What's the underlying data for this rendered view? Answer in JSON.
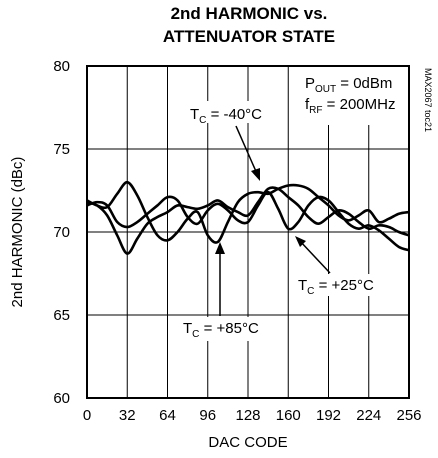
{
  "chart_data": {
    "type": "line",
    "title_line1": "2nd HARMONIC vs.",
    "title_line2": "ATTENUATOR STATE",
    "xlabel": "DAC CODE",
    "ylabel": "2nd HARMONIC (dBc)",
    "xlim": [
      0,
      256
    ],
    "ylim": [
      60,
      80
    ],
    "xticks": [
      "0",
      "32",
      "64",
      "96",
      "128",
      "160",
      "192",
      "224",
      "256"
    ],
    "yticks": [
      "60",
      "65",
      "70",
      "75",
      "80"
    ],
    "grid": true,
    "conditions": {
      "pout_main": "P",
      "pout_sub": "OUT",
      "pout_rest": " = 0dBm",
      "frf_main": "f",
      "frf_sub": "RF",
      "frf_rest": " = 200MHz"
    },
    "side_id": "MAX2067 toc21",
    "series": [
      {
        "name": "T",
        "sub": "C",
        "rest": " = -40°C",
        "x": [
          0,
          8,
          16,
          24,
          32,
          40,
          48,
          56,
          64,
          72,
          80,
          88,
          96,
          104,
          112,
          120,
          128,
          136,
          144,
          152,
          160,
          168,
          176,
          184,
          192,
          200,
          208,
          216,
          224,
          232,
          240,
          248,
          256
        ],
        "values": [
          71.8,
          71.6,
          71.0,
          69.8,
          68.7,
          69.6,
          70.5,
          70.9,
          71.2,
          71.6,
          71.5,
          71.4,
          71.6,
          71.9,
          71.5,
          71.2,
          71.0,
          71.8,
          72.6,
          72.6,
          72.1,
          71.6,
          70.9,
          70.5,
          70.9,
          71.3,
          71.1,
          70.6,
          70.2,
          70.4,
          70.3,
          70.0,
          69.8
        ]
      },
      {
        "name": "T",
        "sub": "C",
        "rest": " = +25°C",
        "x": [
          0,
          8,
          16,
          24,
          32,
          40,
          48,
          56,
          64,
          72,
          80,
          88,
          96,
          104,
          112,
          120,
          128,
          136,
          144,
          152,
          160,
          168,
          176,
          184,
          192,
          200,
          208,
          216,
          224,
          232,
          240,
          248,
          256
        ],
        "values": [
          71.6,
          71.8,
          71.6,
          70.6,
          70.3,
          70.6,
          71.1,
          71.6,
          72.1,
          71.9,
          70.9,
          70.5,
          71.3,
          71.7,
          71.3,
          70.7,
          70.6,
          71.6,
          72.4,
          71.4,
          70.2,
          70.6,
          71.6,
          72.1,
          71.9,
          71.2,
          70.5,
          70.2,
          70.4,
          70.1,
          69.6,
          69.1,
          68.9
        ]
      },
      {
        "name": "T",
        "sub": "C",
        "rest": " = +85°C",
        "x": [
          0,
          8,
          16,
          24,
          32,
          40,
          48,
          56,
          64,
          72,
          80,
          88,
          96,
          104,
          112,
          120,
          128,
          136,
          144,
          152,
          160,
          168,
          176,
          184,
          192,
          200,
          208,
          216,
          224,
          232,
          240,
          248,
          256
        ],
        "values": [
          71.9,
          71.6,
          71.5,
          72.3,
          73.0,
          72.2,
          70.9,
          69.8,
          69.5,
          70.0,
          70.8,
          71.2,
          69.8,
          69.4,
          70.6,
          71.8,
          72.3,
          72.4,
          72.3,
          72.6,
          72.8,
          72.8,
          72.6,
          72.1,
          71.6,
          71.0,
          70.7,
          71.0,
          71.3,
          70.6,
          70.8,
          71.1,
          71.2
        ]
      }
    ]
  }
}
